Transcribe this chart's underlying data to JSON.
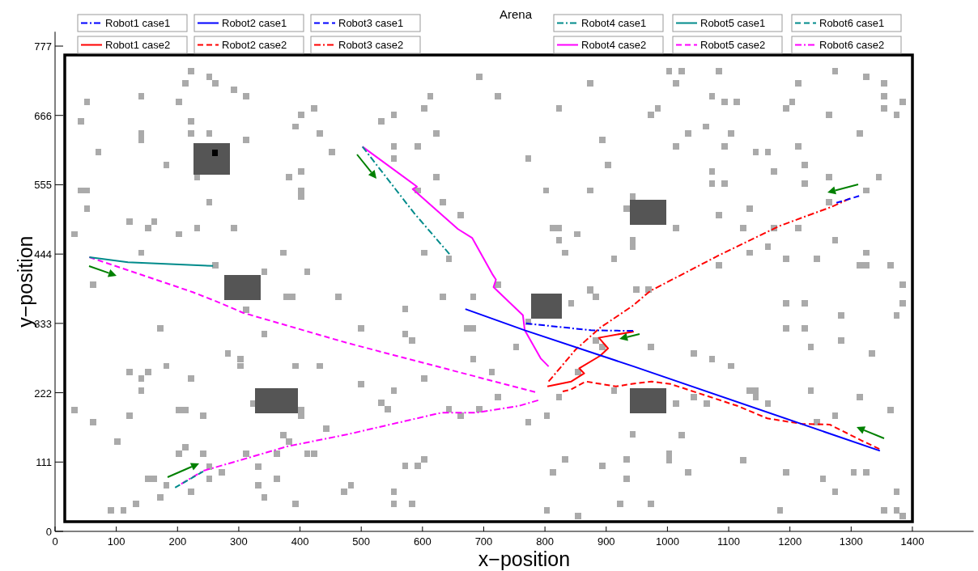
{
  "chart_data": {
    "type": "line",
    "title": "Arena",
    "xlabel": "x−position",
    "ylabel": "y−position",
    "xlim": [
      0,
      1500
    ],
    "ylim": [
      0,
      800
    ],
    "xticks": [
      0,
      100,
      200,
      300,
      400,
      500,
      600,
      700,
      800,
      900,
      1000,
      1100,
      1200,
      1300,
      1400
    ],
    "yticks": [
      0,
      111,
      222,
      333,
      444,
      555,
      666,
      777
    ],
    "grid": false,
    "legend": "top",
    "series": [
      {
        "type": "scatter",
        "color": "#aaaaaa",
        "marker": "square",
        "x": [
          222,
          252,
          213,
          262,
          292,
          312,
          141,
          52,
          202,
          423,
          402,
          42,
          222,
          393,
          141,
          141,
          222,
          252,
          432,
          312,
          71,
          452,
          182,
          402,
          232,
          382,
          42,
          52,
          402,
          402,
          252,
          52,
          122,
          162,
          152,
          232,
          292,
          32,
          202,
          141,
          373,
          262,
          342,
          412,
          62,
          693,
          874,
          613,
          723,
          603,
          823,
          553,
          533,
          623,
          894,
          553,
          592,
          553,
          773,
          903,
          623,
          592,
          802,
          874,
          633,
          933,
          943,
          662,
          813,
          823,
          853,
          823,
          603,
          833,
          643,
          913,
          874,
          723,
          1003,
          1023,
          1084,
          1274,
          1325,
          1014,
          1214,
          1354,
          1073,
          1354,
          1093,
          1113,
          1204,
          1384,
          984,
          1194,
          1354,
          973,
          1264,
          1374,
          1063,
          1034,
          1104,
          1314,
          1014,
          1093,
          1214,
          1144,
          1164,
          1224,
          1073,
          1174,
          1264,
          1345,
          1073,
          1093,
          1224,
          1325,
          1264,
          1134,
          1084,
          1014,
          1124,
          1174,
          1214,
          943,
          943,
          1274,
          1164,
          1134,
          1325,
          1194,
          1244,
          1084,
          1314,
          1325,
          1364,
          1384,
          949,
          969,
          378,
          388,
          463,
          312,
          172,
          342,
          282,
          303,
          303,
          182,
          393,
          432,
          122,
          152,
          141,
          222,
          141,
          323,
          402,
          402,
          32,
          202,
          213,
          122,
          242,
          62,
          443,
          373,
          382,
          102,
          213,
          202,
          242,
          312,
          362,
          412,
          423,
          252,
          332,
          272,
          152,
          162,
          252,
          362,
          182,
          332,
          483,
          472,
          222,
          172,
          342,
          132,
          393,
          91,
          112,
          633,
          683,
          874,
          883,
          843,
          572,
          773,
          500,
          673,
          683,
          572,
          583,
          883,
          894,
          753,
          683,
          713,
          603,
          854,
          500,
          553,
          723,
          823,
          913,
          533,
          543,
          643,
          693,
          662,
          803,
          773,
          943,
          603,
          572,
          592,
          833,
          813,
          894,
          933,
          933,
          553,
          553,
          583,
          803,
          854,
          923,
          1194,
          1224,
          1384,
          1284,
          1374,
          1194,
          1224,
          1284,
          973,
          1234,
          1043,
          1334,
          1073,
          1104,
          1134,
          1144,
          1144,
          1234,
          1043,
          1314,
          1014,
          1064,
          1164,
          1364,
          1274,
          1244,
          1023,
          1003,
          1003,
          1124,
          1034,
          1194,
          1304,
          1325,
          1254,
          1274,
          1374,
          973,
          1184,
          1354,
          1374,
          1384
        ],
        "values": [
          737,
          728,
          717,
          717,
          707,
          697,
          697,
          688,
          688,
          677,
          667,
          657,
          657,
          648,
          637,
          627,
          637,
          637,
          637,
          627,
          607,
          607,
          587,
          576,
          567,
          567,
          546,
          546,
          546,
          536,
          527,
          517,
          496,
          496,
          486,
          486,
          486,
          476,
          476,
          446,
          446,
          426,
          416,
          416,
          395,
          728,
          717,
          697,
          697,
          677,
          677,
          667,
          657,
          637,
          627,
          616,
          616,
          597,
          597,
          587,
          567,
          546,
          546,
          546,
          527,
          517,
          536,
          506,
          486,
          486,
          476,
          466,
          446,
          446,
          436,
          436,
          387,
          395,
          737,
          737,
          737,
          737,
          728,
          717,
          717,
          717,
          697,
          697,
          688,
          688,
          688,
          688,
          677,
          677,
          677,
          667,
          667,
          667,
          648,
          637,
          637,
          637,
          616,
          616,
          616,
          607,
          607,
          587,
          576,
          576,
          567,
          567,
          557,
          557,
          557,
          546,
          527,
          517,
          506,
          486,
          486,
          486,
          486,
          466,
          456,
          466,
          456,
          446,
          446,
          436,
          436,
          426,
          426,
          426,
          426,
          395,
          387,
          387,
          376,
          376,
          376,
          355,
          325,
          316,
          285,
          276,
          265,
          265,
          265,
          265,
          255,
          255,
          245,
          245,
          225,
          205,
          194,
          185,
          194,
          194,
          194,
          185,
          185,
          175,
          164,
          154,
          144,
          144,
          135,
          124,
          124,
          124,
          124,
          124,
          124,
          104,
          104,
          95,
          84,
          84,
          84,
          84,
          74,
          74,
          74,
          63,
          63,
          54,
          54,
          44,
          44,
          34,
          34,
          376,
          376,
          386,
          376,
          365,
          356,
          335,
          325,
          325,
          325,
          316,
          306,
          306,
          295,
          295,
          276,
          255,
          245,
          255,
          236,
          225,
          215,
          215,
          225,
          206,
          196,
          196,
          196,
          185,
          185,
          175,
          155,
          115,
          105,
          105,
          115,
          95,
          105,
          115,
          84,
          63,
          44,
          44,
          34,
          25,
          44,
          365,
          365,
          365,
          346,
          346,
          325,
          325,
          306,
          295,
          295,
          285,
          285,
          276,
          265,
          225,
          225,
          215,
          225,
          215,
          215,
          205,
          205,
          205,
          194,
          185,
          175,
          154,
          124,
          114,
          114,
          95,
          95,
          95,
          95,
          84,
          63,
          63,
          44,
          34,
          34,
          34,
          25
        ]
      },
      {
        "type": "scatter",
        "color": "#000000",
        "marker": "square",
        "x": [
          261
        ],
        "values": [
          606
        ]
      },
      {
        "type": "scatter",
        "color": "#555555",
        "marker": "square",
        "x": [
          231,
          241,
          251,
          261,
          271,
          281,
          231,
          241,
          251,
          261,
          271,
          281,
          231,
          241,
          251,
          261,
          271,
          281,
          231,
          241,
          251,
          271,
          281,
          231,
          241,
          251,
          261,
          271,
          281,
          281,
          291,
          301,
          311,
          321,
          331,
          281,
          291,
          301,
          311,
          321,
          331,
          281,
          291,
          301,
          311,
          321,
          331,
          281,
          291,
          301,
          311,
          321,
          331,
          782,
          792,
          802,
          812,
          822,
          782,
          792,
          802,
          812,
          822,
          782,
          792,
          802,
          812,
          822,
          782,
          792,
          802,
          812,
          822,
          332,
          342,
          352,
          362,
          372,
          382,
          392,
          332,
          342,
          352,
          362,
          372,
          382,
          392,
          332,
          342,
          352,
          362,
          372,
          382,
          392,
          332,
          342,
          352,
          362,
          372,
          382,
          392,
          943,
          953,
          963,
          973,
          983,
          993,
          943,
          953,
          963,
          973,
          983,
          993,
          943,
          953,
          963,
          973,
          983,
          993,
          943,
          953,
          963,
          973,
          983,
          993,
          943,
          953,
          963,
          973,
          983,
          993,
          943,
          953,
          963,
          973,
          983,
          993,
          943,
          953,
          963,
          973,
          983,
          993,
          943,
          953,
          963,
          973,
          983,
          993
        ],
        "values": [
          576,
          576,
          576,
          576,
          576,
          576,
          586,
          586,
          586,
          586,
          586,
          586,
          596,
          596,
          596,
          596,
          596,
          596,
          606,
          606,
          606,
          606,
          606,
          616,
          616,
          616,
          616,
          616,
          616,
          375,
          375,
          375,
          375,
          375,
          375,
          385,
          385,
          385,
          385,
          385,
          385,
          395,
          395,
          395,
          395,
          395,
          395,
          405,
          405,
          405,
          405,
          405,
          405,
          346,
          346,
          346,
          346,
          346,
          356,
          356,
          356,
          356,
          356,
          366,
          366,
          366,
          366,
          366,
          376,
          376,
          376,
          376,
          376,
          194,
          194,
          194,
          194,
          194,
          194,
          194,
          204,
          204,
          204,
          204,
          204,
          204,
          204,
          214,
          214,
          214,
          214,
          214,
          214,
          214,
          224,
          224,
          224,
          224,
          224,
          224,
          224,
          496,
          496,
          496,
          496,
          496,
          496,
          506,
          506,
          506,
          506,
          506,
          506,
          516,
          516,
          516,
          516,
          516,
          516,
          526,
          526,
          526,
          526,
          526,
          526,
          194,
          194,
          194,
          194,
          194,
          194,
          204,
          204,
          204,
          204,
          204,
          204,
          214,
          214,
          214,
          214,
          214,
          214,
          224,
          224,
          224,
          224,
          224,
          224
        ]
      },
      {
        "name": "Robot1 case1",
        "color": "#0000ff",
        "line_style": "dashdot",
        "x": [
          769,
          875,
          944
        ],
        "values": [
          333,
          322,
          321
        ]
      },
      {
        "name": "Robot2 case1",
        "color": "#0000ff",
        "line_style": "solid",
        "x": [
          670,
          767,
          945,
          1347
        ],
        "values": [
          356,
          322,
          264,
          129
        ]
      },
      {
        "name": "Robot3 case1",
        "color": "#0000ff",
        "line_style": "dashed",
        "x": [
          1276,
          1313
        ],
        "values": [
          526,
          537
        ]
      },
      {
        "name": "Robot1 case2",
        "color": "#ff0000",
        "line_style": "solid",
        "x": [
          804,
          843,
          864,
          856,
          890,
          903,
          888,
          945
        ],
        "values": [
          232,
          240,
          253,
          261,
          281,
          293,
          310,
          320
        ]
      },
      {
        "name": "Robot2 case2",
        "color": "#ff0000",
        "line_style": "dashed",
        "x": [
          1346,
          1318,
          1265,
          1220,
          1163,
          1114,
          1005,
          974,
          941,
          916,
          867,
          842,
          829
        ],
        "values": [
          132,
          145,
          171,
          172,
          181,
          201,
          236,
          240,
          236,
          232,
          240,
          227,
          224
        ]
      },
      {
        "name": "Robot3 case2",
        "color": "#ff0000",
        "line_style": "dashdot",
        "x": [
          1298,
          1269,
          1183,
          1084,
          972,
          943,
          890,
          850,
          806
        ],
        "values": [
          533,
          520,
          489,
          442,
          385,
          361,
          326,
          291,
          240
        ]
      },
      {
        "name": "Robot4 case1",
        "color": "#008b8b",
        "line_style": "dashdot",
        "x": [
          502,
          586,
          644
        ],
        "values": [
          616,
          510,
          444
        ]
      },
      {
        "name": "Robot5 case1",
        "color": "#008b8b",
        "line_style": "solid",
        "x": [
          56,
          119,
          258
        ],
        "values": [
          439,
          431,
          425
        ]
      },
      {
        "name": "Robot6 case1",
        "color": "#008b8b",
        "line_style": "dashed",
        "x": [
          196,
          242
        ],
        "values": [
          70,
          96
        ]
      },
      {
        "name": "Robot4 case2",
        "color": "#ff00ff",
        "line_style": "solid",
        "x": [
          502,
          591,
          584,
          658,
          681,
          714,
          720,
          716,
          764,
          767,
          793,
          806
        ],
        "values": [
          616,
          552,
          548,
          484,
          470,
          412,
          403,
          391,
          346,
          322,
          277,
          264
        ]
      },
      {
        "name": "Robot5 case2",
        "color": "#ff00ff",
        "line_style": "dashed",
        "x": [
          56,
          225,
          264,
          307,
          476,
          784
        ],
        "values": [
          439,
          383,
          368,
          350,
          302,
          223
        ]
      },
      {
        "name": "Robot6 case2",
        "color": "#ff00ff",
        "line_style": "dashdot",
        "x": [
          206,
          242,
          313,
          379,
          476,
          631,
          687,
          758,
          789
        ],
        "values": [
          76,
          97,
          117,
          136,
          155,
          190,
          190,
          201,
          210
        ]
      }
    ]
  }
}
